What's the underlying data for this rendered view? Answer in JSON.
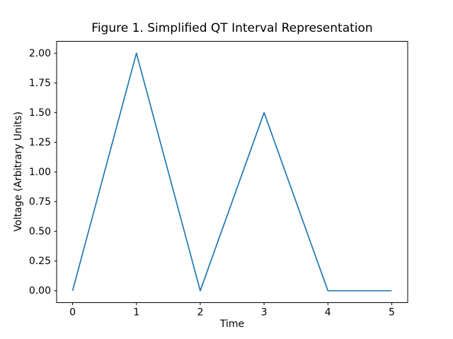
{
  "figure": {
    "title": "Figure 1. Simplified QT Interval Representation"
  },
  "chart_data": {
    "type": "line",
    "title": "Figure 1. Simplified QT Interval Representation",
    "xlabel": "Time",
    "ylabel": "Voltage (Arbitrary Units)",
    "x": [
      0,
      1,
      2,
      3,
      4,
      5
    ],
    "y": [
      0,
      2,
      0,
      1.5,
      0,
      0
    ],
    "xticks": [
      0,
      1,
      2,
      3,
      4,
      5
    ],
    "xtick_labels": [
      "0",
      "1",
      "2",
      "3",
      "4",
      "5"
    ],
    "yticks": [
      0,
      0.25,
      0.5,
      0.75,
      1,
      1.25,
      1.5,
      1.75,
      2
    ],
    "ytick_labels": [
      "0.00",
      "0.25",
      "0.50",
      "0.75",
      "1.00",
      "1.25",
      "1.50",
      "1.75",
      "2.00"
    ],
    "xlim": [
      -0.25,
      5.25
    ],
    "ylim": [
      -0.1,
      2.1
    ],
    "grid": false,
    "legend": "none",
    "line_color": "#1f77b4",
    "axes_color": "#000000",
    "background_color": "#ffffff"
  }
}
